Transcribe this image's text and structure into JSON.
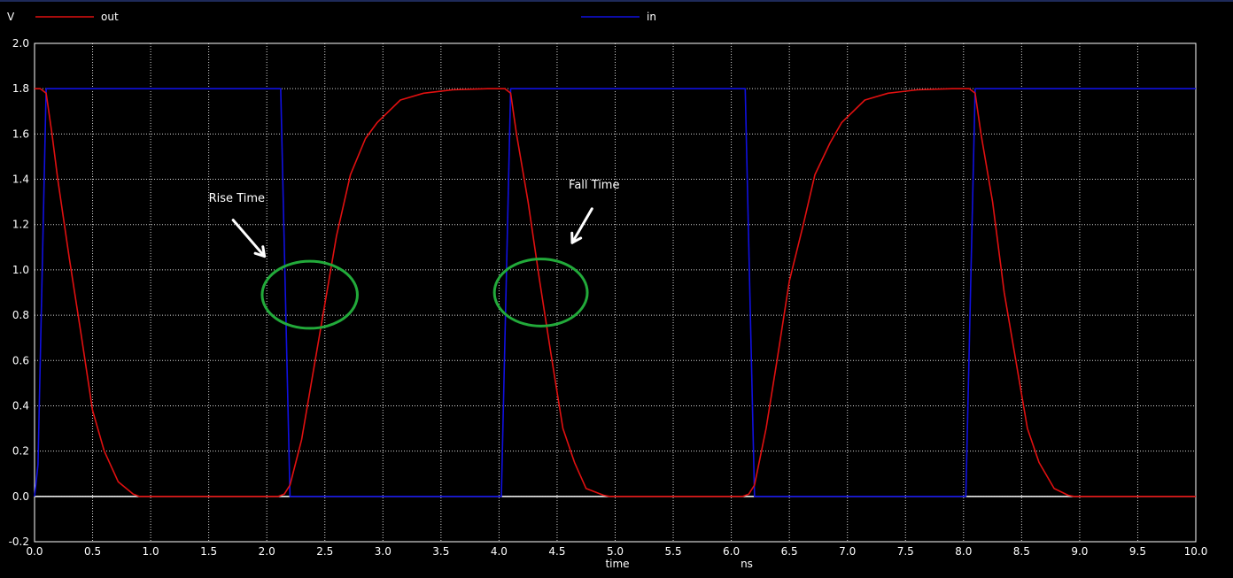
{
  "chart_data": {
    "type": "line",
    "ylabel": "V",
    "xlabel": "time",
    "xunit": "ns",
    "xlim": [
      0,
      10
    ],
    "ylim": [
      -0.2,
      2.0
    ],
    "grid": true,
    "legend": "top",
    "x_ticks": [
      "0.0",
      "0.5",
      "1.0",
      "1.5",
      "2.0",
      "2.5",
      "3.0",
      "3.5",
      "4.0",
      "4.5",
      "5.0",
      "5.5",
      "6.0",
      "6.5",
      "7.0",
      "7.5",
      "8.0",
      "8.5",
      "9.0",
      "9.5",
      "10.0"
    ],
    "y_ticks": [
      "2.0",
      "1.8",
      "1.6",
      "1.4",
      "1.2",
      "1.0",
      "0.8",
      "0.6",
      "0.4",
      "0.2",
      "0.0",
      "-0.2"
    ],
    "series": [
      {
        "name": "out",
        "color": "#e01010",
        "points": [
          [
            0.0,
            1.8
          ],
          [
            0.05,
            1.8
          ],
          [
            0.1,
            1.78
          ],
          [
            0.15,
            1.6
          ],
          [
            0.2,
            1.4
          ],
          [
            0.3,
            1.05
          ],
          [
            0.4,
            0.72
          ],
          [
            0.5,
            0.38
          ],
          [
            0.6,
            0.2
          ],
          [
            0.72,
            0.065
          ],
          [
            0.85,
            0.01
          ],
          [
            0.9,
            0.0
          ],
          [
            2.1,
            0.0
          ],
          [
            2.15,
            0.01
          ],
          [
            2.2,
            0.05
          ],
          [
            2.3,
            0.25
          ],
          [
            2.4,
            0.55
          ],
          [
            2.5,
            0.85
          ],
          [
            2.6,
            1.15
          ],
          [
            2.72,
            1.42
          ],
          [
            2.85,
            1.58
          ],
          [
            2.95,
            1.65
          ],
          [
            3.15,
            1.75
          ],
          [
            3.35,
            1.78
          ],
          [
            3.6,
            1.795
          ],
          [
            3.9,
            1.8
          ],
          [
            4.05,
            1.8
          ],
          [
            4.1,
            1.78
          ],
          [
            4.15,
            1.6
          ],
          [
            4.25,
            1.3
          ],
          [
            4.35,
            0.95
          ],
          [
            4.45,
            0.62
          ],
          [
            4.55,
            0.3
          ],
          [
            4.65,
            0.15
          ],
          [
            4.75,
            0.035
          ],
          [
            4.9,
            0.005
          ],
          [
            4.95,
            0.0
          ],
          [
            6.1,
            0.0
          ],
          [
            6.15,
            0.01
          ],
          [
            6.2,
            0.05
          ],
          [
            6.3,
            0.3
          ],
          [
            6.4,
            0.62
          ],
          [
            6.5,
            0.95
          ],
          [
            6.62,
            1.2
          ],
          [
            6.72,
            1.42
          ],
          [
            6.85,
            1.56
          ],
          [
            6.95,
            1.65
          ],
          [
            7.15,
            1.75
          ],
          [
            7.35,
            1.78
          ],
          [
            7.6,
            1.795
          ],
          [
            7.9,
            1.8
          ],
          [
            8.05,
            1.8
          ],
          [
            8.1,
            1.78
          ],
          [
            8.15,
            1.6
          ],
          [
            8.25,
            1.3
          ],
          [
            8.35,
            0.9
          ],
          [
            8.45,
            0.6
          ],
          [
            8.55,
            0.3
          ],
          [
            8.65,
            0.15
          ],
          [
            8.78,
            0.035
          ],
          [
            8.9,
            0.005
          ],
          [
            8.95,
            0.0
          ],
          [
            10.0,
            0.0
          ]
        ]
      },
      {
        "name": "in",
        "color": "#1010e0",
        "points": [
          [
            0.0,
            0.0
          ],
          [
            0.03,
            0.14
          ],
          [
            0.1,
            1.8
          ],
          [
            2.12,
            1.8
          ],
          [
            2.2,
            0.0
          ],
          [
            4.02,
            0.0
          ],
          [
            4.1,
            1.8
          ],
          [
            6.12,
            1.8
          ],
          [
            6.2,
            0.0
          ],
          [
            8.02,
            0.0
          ],
          [
            8.1,
            1.8
          ],
          [
            10.0,
            1.8
          ]
        ]
      }
    ],
    "annotations": [
      {
        "text": "Rise Time",
        "x": 1.5,
        "y": 1.3
      },
      {
        "text": "Fall Time",
        "x": 4.6,
        "y": 1.36
      }
    ],
    "highlights": [
      {
        "cx": 2.37,
        "cy": 0.89,
        "rx": 0.41,
        "ry": 0.148,
        "color": "#22aa3a"
      },
      {
        "cx": 4.36,
        "cy": 0.9,
        "rx": 0.4,
        "ry": 0.148,
        "color": "#22aa3a"
      }
    ]
  }
}
